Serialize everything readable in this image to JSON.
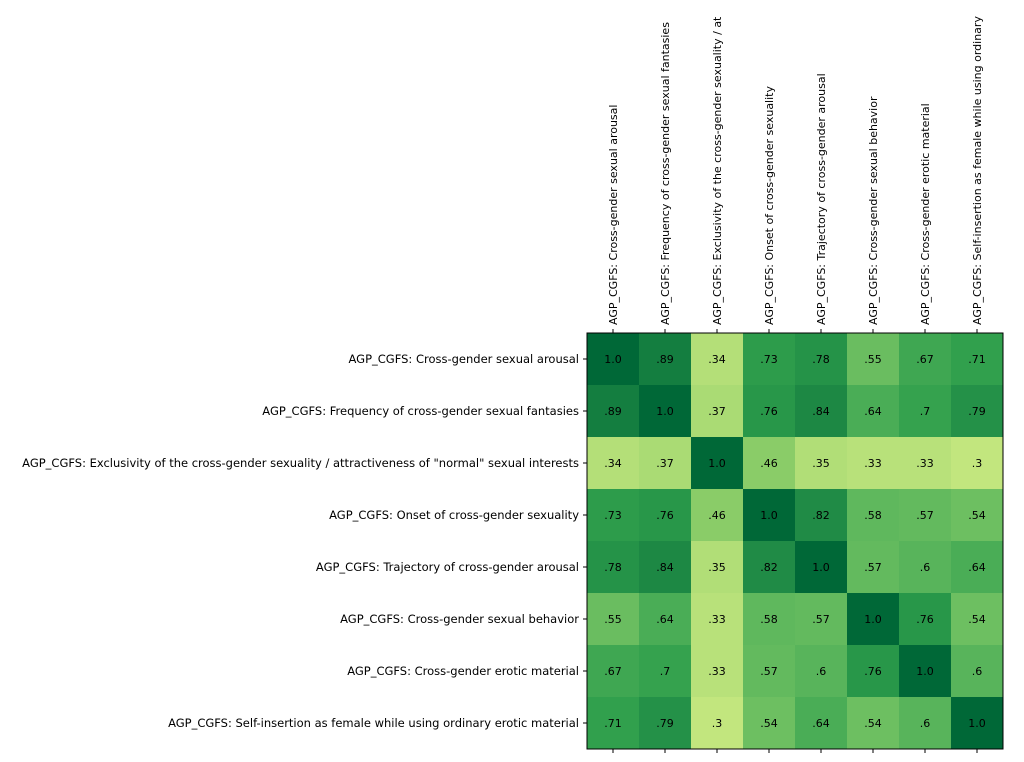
{
  "chart_data": {
    "type": "heatmap",
    "title": "",
    "xlabel": "",
    "ylabel": "",
    "variables": [
      "AGP_CGFS: Cross-gender sexual arousal",
      "AGP_CGFS: Frequency of cross-gender sexual fantasies",
      "AGP_CGFS: Exclusivity of the cross-gender sexuality / attractiveness of \"normal\" sexual interests",
      "AGP_CGFS: Onset of cross-gender sexuality",
      "AGP_CGFS: Trajectory of cross-gender arousal",
      "AGP_CGFS: Cross-gender sexual behavior",
      "AGP_CGFS: Cross-gender erotic material",
      "AGP_CGFS: Self-insertion as female while using ordinary erotic material"
    ],
    "column_labels_visible": [
      "AGP_CGFS: Cross-gender sexual arousal",
      "AGP_CGFS: Frequency of cross-gender sexual fantasies",
      "AGP_CGFS: Exclusivity of the cross-gender sexuality / at",
      "AGP_CGFS: Onset of cross-gender sexuality",
      "AGP_CGFS: Trajectory of cross-gender arousal",
      "AGP_CGFS: Cross-gender sexual behavior",
      "AGP_CGFS: Cross-gender erotic material",
      "AGP_CGFS: Self-insertion as female while using ordinary"
    ],
    "cell_labels": [
      [
        "1.0",
        ".89",
        ".34",
        ".73",
        ".78",
        ".55",
        ".67",
        ".71"
      ],
      [
        ".89",
        "1.0",
        ".37",
        ".76",
        ".84",
        ".64",
        ".7",
        ".79"
      ],
      [
        ".34",
        ".37",
        "1.0",
        ".46",
        ".35",
        ".33",
        ".33",
        ".3"
      ],
      [
        ".73",
        ".76",
        ".46",
        "1.0",
        ".82",
        ".58",
        ".57",
        ".54"
      ],
      [
        ".78",
        ".84",
        ".35",
        ".82",
        "1.0",
        ".57",
        ".6",
        ".64"
      ],
      [
        ".55",
        ".64",
        ".33",
        ".58",
        ".57",
        "1.0",
        ".76",
        ".54"
      ],
      [
        ".67",
        ".7",
        ".33",
        ".57",
        ".6",
        ".76",
        "1.0",
        ".6"
      ],
      [
        ".71",
        ".79",
        ".3",
        ".54",
        ".64",
        ".54",
        ".6",
        "1.0"
      ]
    ],
    "values": [
      [
        1.0,
        0.89,
        0.34,
        0.73,
        0.78,
        0.55,
        0.67,
        0.71
      ],
      [
        0.89,
        1.0,
        0.37,
        0.76,
        0.84,
        0.64,
        0.7,
        0.79
      ],
      [
        0.34,
        0.37,
        1.0,
        0.46,
        0.35,
        0.33,
        0.33,
        0.3
      ],
      [
        0.73,
        0.76,
        0.46,
        1.0,
        0.82,
        0.58,
        0.57,
        0.54
      ],
      [
        0.78,
        0.84,
        0.35,
        0.82,
        1.0,
        0.57,
        0.6,
        0.64
      ],
      [
        0.55,
        0.64,
        0.33,
        0.58,
        0.57,
        1.0,
        0.76,
        0.54
      ],
      [
        0.67,
        0.7,
        0.33,
        0.57,
        0.6,
        0.76,
        1.0,
        0.6
      ],
      [
        0.71,
        0.79,
        0.3,
        0.54,
        0.64,
        0.54,
        0.6,
        1.0
      ]
    ],
    "colormap": "YlGn",
    "color_range": [
      0.3,
      1.0
    ],
    "color_low": "#c2e67e",
    "color_high": "#006837",
    "grid": false,
    "legend": "none"
  }
}
